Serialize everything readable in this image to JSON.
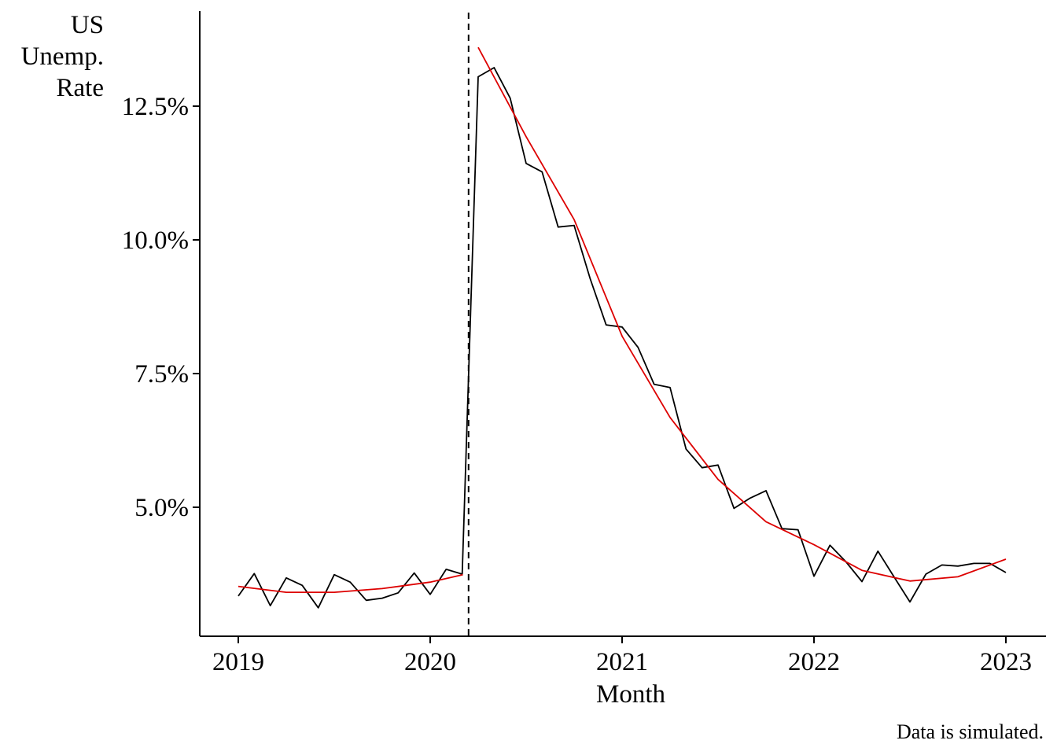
{
  "chart_data": {
    "type": "line",
    "title": "",
    "xlabel": "Month",
    "ylabel": "US\nUnemp.\nRate",
    "caption": "Data is simulated.",
    "x_ticks": [
      "2019",
      "2020",
      "2021",
      "2022",
      "2023"
    ],
    "y_ticks": [
      "5.0%",
      "7.5%",
      "10.0%",
      "12.5%"
    ],
    "x_range": [
      2018.8,
      2023.15
    ],
    "y_range": [
      2.6,
      14.3
    ],
    "grid": false,
    "legend": "none",
    "cutoff": 2020.2,
    "series": [
      {
        "color": "#000000",
        "x": [
          2019.0,
          2019.083,
          2019.167,
          2019.25,
          2019.333,
          2019.417,
          2019.5,
          2019.583,
          2019.667,
          2019.75,
          2019.833,
          2019.917,
          2020.0,
          2020.083,
          2020.167,
          2020.25,
          2020.333,
          2020.417,
          2020.5,
          2020.583,
          2020.667,
          2020.75,
          2020.833,
          2020.917,
          2021.0,
          2021.083,
          2021.167,
          2021.25,
          2021.333,
          2021.417,
          2021.5,
          2021.583,
          2021.667,
          2021.75,
          2021.833,
          2021.917,
          2022.0,
          2022.083,
          2022.167,
          2022.25,
          2022.333,
          2022.417,
          2022.5,
          2022.583,
          2022.667,
          2022.75,
          2022.833,
          2022.917,
          2023.0
        ],
        "y": [
          3.34,
          3.76,
          3.16,
          3.68,
          3.54,
          3.12,
          3.74,
          3.6,
          3.26,
          3.3,
          3.4,
          3.77,
          3.37,
          3.84,
          3.75,
          13.05,
          13.22,
          12.65,
          11.43,
          11.27,
          10.24,
          10.27,
          9.28,
          8.41,
          8.37,
          7.99,
          7.3,
          7.24,
          6.09,
          5.74,
          5.79,
          4.98,
          5.17,
          5.31,
          4.6,
          4.58,
          3.71,
          4.29,
          3.98,
          3.61,
          4.18,
          3.7,
          3.23,
          3.75,
          3.92,
          3.9,
          3.95,
          3.95,
          3.78
        ]
      },
      {
        "color": "#dd0000",
        "x": [
          2019.0,
          2019.25,
          2019.5,
          2019.75,
          2020.0,
          2020.17
        ],
        "y": [
          3.52,
          3.41,
          3.41,
          3.48,
          3.6,
          3.74
        ]
      },
      {
        "color": "#dd0000",
        "x": [
          2020.25,
          2020.5,
          2020.75,
          2021.0,
          2021.25,
          2021.5,
          2021.75,
          2022.0,
          2022.25,
          2022.5,
          2022.75,
          2023.0
        ],
        "y": [
          13.6,
          11.93,
          10.38,
          8.2,
          6.68,
          5.52,
          4.73,
          4.3,
          3.82,
          3.62,
          3.7,
          4.03
        ]
      }
    ]
  }
}
